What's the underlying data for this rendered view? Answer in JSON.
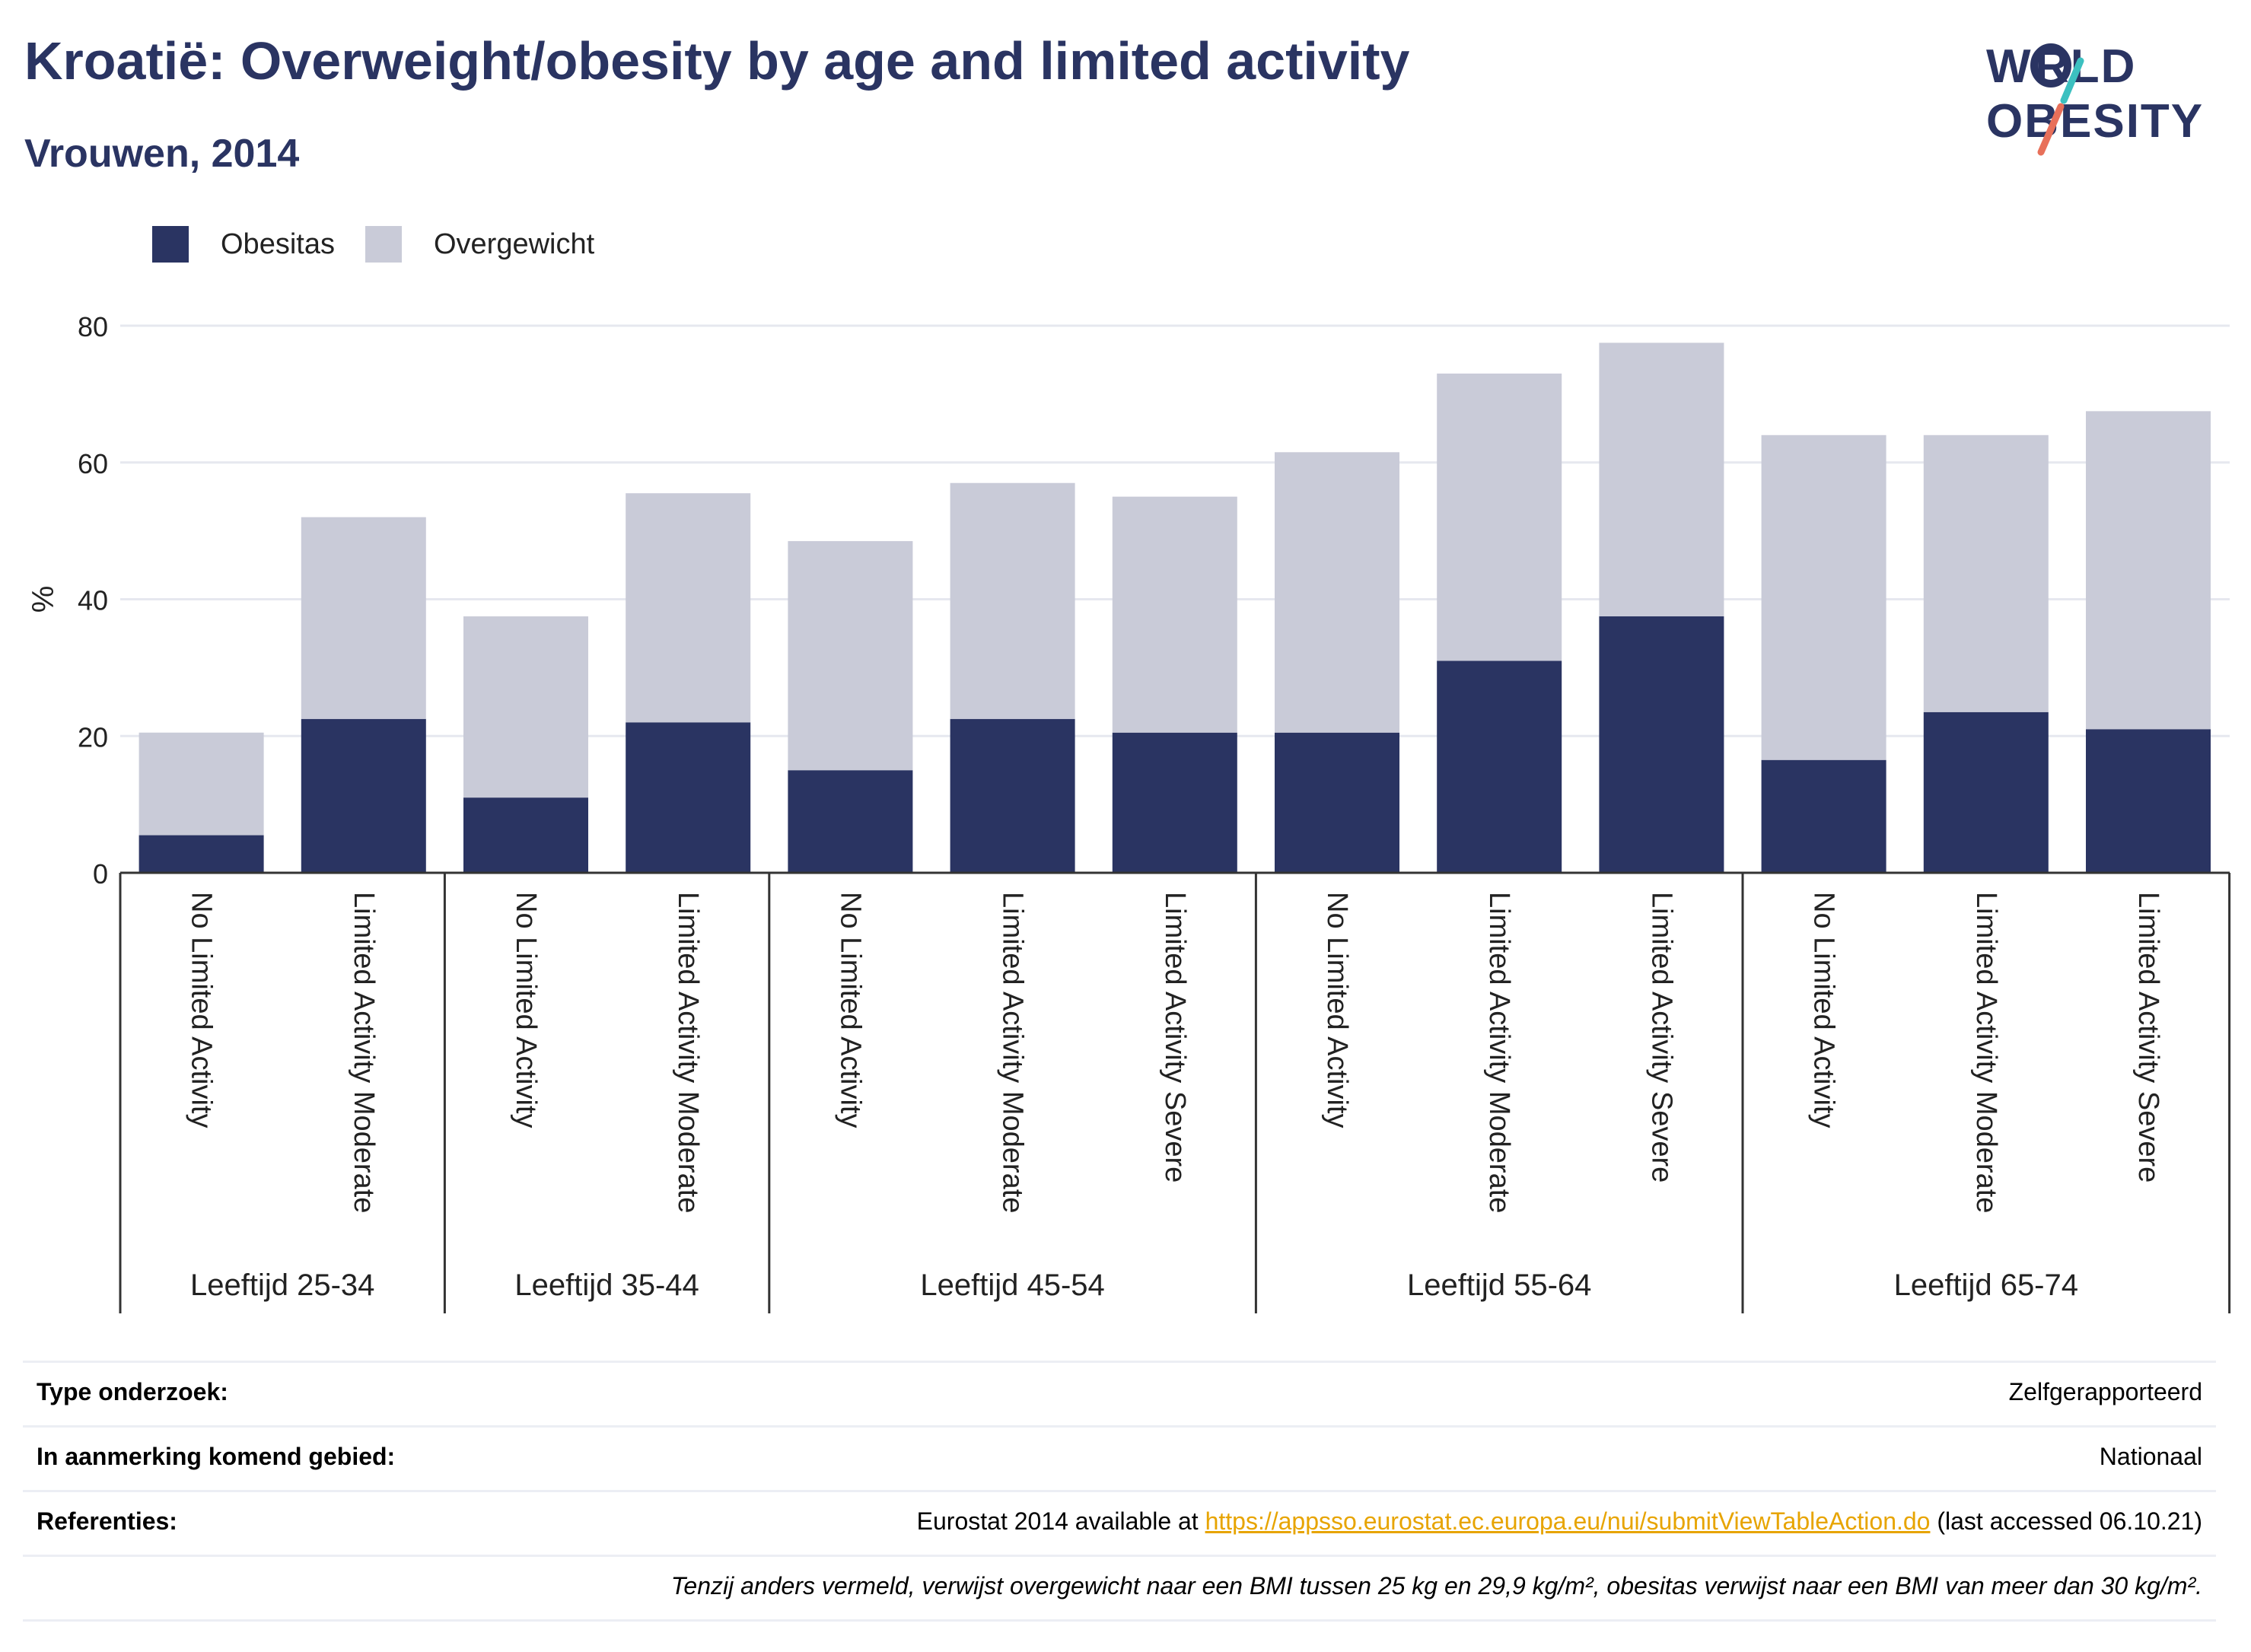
{
  "header": {
    "title": "Kroatië: Overweight/obesity by age and limited activity",
    "subtitle": "Vrouwen, 2014"
  },
  "logo": {
    "line1": "WORLD",
    "line2": "OBESITY"
  },
  "legend": [
    {
      "label": "Obesitas",
      "color": "#2a3462"
    },
    {
      "label": "Overgewicht",
      "color": "#c9cbd8"
    }
  ],
  "chart_data": {
    "type": "bar",
    "stacked": true,
    "ylabel": "%",
    "ylim": [
      0,
      80
    ],
    "yticks": [
      0,
      20,
      40,
      60,
      80
    ],
    "grid": true,
    "legend_position": "top-left",
    "groups": [
      {
        "label": "Leeftijd 25-34",
        "categories": [
          "No Limited Activity",
          "Limited Activity Moderate"
        ]
      },
      {
        "label": "Leeftijd 35-44",
        "categories": [
          "No Limited Activity",
          "Limited Activity Moderate"
        ]
      },
      {
        "label": "Leeftijd 45-54",
        "categories": [
          "No Limited Activity",
          "Limited Activity Moderate",
          "Limited Activity Severe"
        ]
      },
      {
        "label": "Leeftijd 55-64",
        "categories": [
          "No Limited Activity",
          "Limited Activity Moderate",
          "Limited Activity Severe"
        ]
      },
      {
        "label": "Leeftijd 65-74",
        "categories": [
          "No Limited Activity",
          "Limited Activity Moderate",
          "Limited Activity Severe"
        ]
      }
    ],
    "series": [
      {
        "name": "Obesitas",
        "color": "#2a3462",
        "values": [
          5.5,
          22.5,
          11,
          22,
          15,
          22.5,
          20.5,
          20.5,
          31,
          37.5,
          16.5,
          23.5,
          21
        ]
      },
      {
        "name": "Overgewicht",
        "color": "#c9cbd8",
        "values": [
          15,
          29.5,
          26.5,
          33.5,
          33.5,
          34.5,
          34.5,
          41,
          42,
          40,
          47.5,
          40.5,
          46.5
        ]
      }
    ]
  },
  "info": {
    "rows": [
      {
        "label": "Type onderzoek:",
        "value": "Zelfgerapporteerd"
      },
      {
        "label": "In aanmerking komend gebied:",
        "value": "Nationaal"
      },
      {
        "label": "Referenties:",
        "value_pre": "Eurostat 2014 available at ",
        "link": "https://appsso.eurostat.ec.europa.eu/nui/submitViewTableAction.do",
        "value_post": " (last accessed 06.10.21)"
      }
    ],
    "note": "Tenzij anders vermeld, verwijst overgewicht naar een BMI tussen 25 kg en 29,9 kg/m², obesitas verwijst naar een BMI van meer dan 30 kg/m²."
  }
}
